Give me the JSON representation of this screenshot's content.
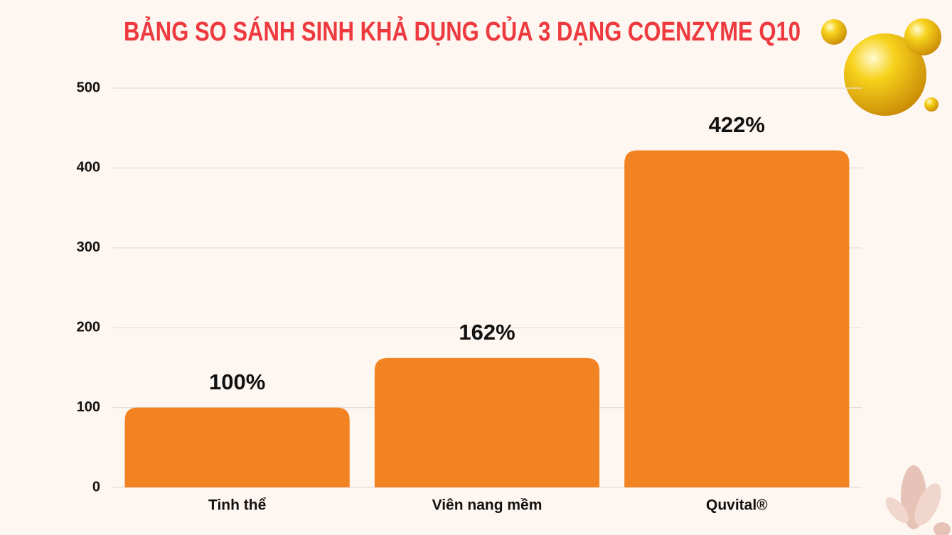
{
  "chart_data": {
    "type": "bar",
    "title": "BẢNG SO SÁNH SINH KHẢ DỤNG CỦA 3 DẠNG COENZYME Q10",
    "categories": [
      "Tinh thể",
      "Viên nang mềm",
      "Quvital®"
    ],
    "values": [
      100,
      162,
      422
    ],
    "value_labels": [
      "100%",
      "162%",
      "422%"
    ],
    "color": "#f28322",
    "ylim": [
      0,
      500
    ],
    "yticks": [
      0,
      100,
      200,
      300,
      400,
      500
    ],
    "grid": true
  }
}
